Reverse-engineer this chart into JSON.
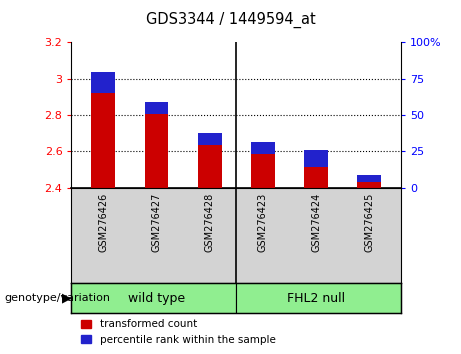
{
  "title": "GDS3344 / 1449594_at",
  "samples": [
    "GSM276426",
    "GSM276427",
    "GSM276428",
    "GSM276423",
    "GSM276424",
    "GSM276425"
  ],
  "transformed_count": [
    3.04,
    2.87,
    2.7,
    2.65,
    2.61,
    2.47
  ],
  "percentile_rank_pct": [
    15,
    8,
    8,
    8,
    12,
    5
  ],
  "bar_base": 2.4,
  "ylim_left": [
    2.4,
    3.2
  ],
  "ylim_right": [
    0,
    100
  ],
  "yticks_left": [
    2.4,
    2.6,
    2.8,
    3.0,
    3.2
  ],
  "ytick_labels_left": [
    "2.4",
    "2.6",
    "2.8",
    "3",
    "3.2"
  ],
  "yticks_right": [
    0,
    25,
    50,
    75,
    100
  ],
  "ytick_labels_right": [
    "0",
    "25",
    "50",
    "75",
    "100%"
  ],
  "red_color": "#CC0000",
  "blue_color": "#2222CC",
  "bg_color_xlabel": "#D3D3D3",
  "bg_color_group": "#90EE90",
  "legend_red": "transformed count",
  "legend_blue": "percentile rank within the sample",
  "genotype_label": "genotype/variation",
  "group1_label": "wild type",
  "group2_label": "FHL2 null",
  "dotted_lines": [
    2.6,
    2.8,
    3.0
  ],
  "bar_width": 0.45
}
